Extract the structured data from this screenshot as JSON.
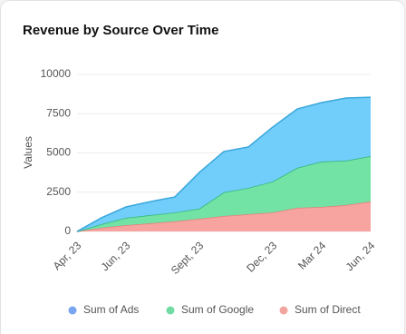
{
  "chart_data": {
    "type": "stacked-area",
    "title": "Revenue by Source Over Time",
    "y_label": "Values",
    "categories": [
      "Apr, 23",
      null,
      "Jun, 23",
      null,
      null,
      "Sept, 23",
      null,
      null,
      "Dec, 23",
      null,
      "Mar 24",
      null,
      "Jun, 24"
    ],
    "series": [
      {
        "name": "Sum of Ads",
        "color": "#71cdf9",
        "line_color": "#3aa7dc",
        "legend_color": "#78a6ee",
        "values": [
          0,
          410,
          690,
          860,
          990,
          2310,
          2600,
          2610,
          3470,
          3750,
          3760,
          3990,
          3750
        ]
      },
      {
        "name": "Sum of Google",
        "color": "#72e3a5",
        "line_color": "#2fb57a",
        "legend_color": "#72dba2",
        "values": [
          0,
          230,
          470,
          520,
          570,
          640,
          1510,
          1670,
          1970,
          2550,
          2890,
          2830,
          2890
        ]
      },
      {
        "name": "Sum of Direct",
        "color": "#f7a3a0",
        "line_color": "#e57f7c",
        "legend_color": "#f2a59e",
        "values": [
          0,
          230,
          400,
          520,
          640,
          810,
          980,
          1100,
          1210,
          1500,
          1560,
          1680,
          1910
        ]
      }
    ],
    "stack_order": [
      2,
      1,
      0
    ],
    "ylim": [
      0,
      10000
    ],
    "yticks": [
      0,
      2500,
      5000,
      7500,
      10000
    ],
    "grid": true
  }
}
